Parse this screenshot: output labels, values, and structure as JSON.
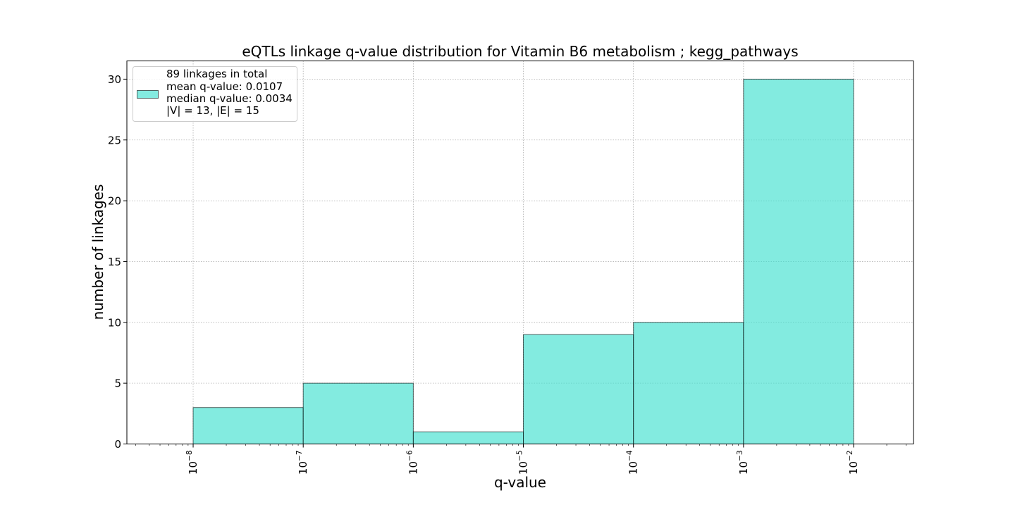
{
  "chart_data": {
    "type": "bar",
    "title": "eQTLs linkage q-value distribution for Vitamin B6 metabolism ; kegg_pathways",
    "xlabel": "q-value",
    "ylabel": "number of linkages",
    "x_scale": "log",
    "x_range": [
      2.5e-09,
      0.035
    ],
    "ylim": [
      0,
      31.5
    ],
    "bins": [
      {
        "from": 1e-08,
        "to": 1e-07,
        "count": 3
      },
      {
        "from": 1e-07,
        "to": 1e-06,
        "count": 5
      },
      {
        "from": 1e-06,
        "to": 1e-05,
        "count": 1
      },
      {
        "from": 1e-05,
        "to": 0.0001,
        "count": 9
      },
      {
        "from": 0.0001,
        "to": 0.001,
        "count": 10
      },
      {
        "from": 0.001,
        "to": 0.01,
        "count": 30
      }
    ],
    "x_ticks": [
      {
        "value": 1e-08,
        "base": "10",
        "exp": "−8"
      },
      {
        "value": 1e-07,
        "base": "10",
        "exp": "−7"
      },
      {
        "value": 1e-06,
        "base": "10",
        "exp": "−6"
      },
      {
        "value": 1e-05,
        "base": "10",
        "exp": "−5"
      },
      {
        "value": 0.0001,
        "base": "10",
        "exp": "−4"
      },
      {
        "value": 0.001,
        "base": "10",
        "exp": "−3"
      },
      {
        "value": 0.01,
        "base": "10",
        "exp": "−2"
      }
    ],
    "y_ticks": [
      0,
      5,
      10,
      15,
      20,
      25,
      30
    ],
    "grid": true,
    "bar_color": "#40e0d0",
    "bar_edge_color": "#000000",
    "legend": {
      "placement": "top-left",
      "lines": [
        "89 linkages in total",
        "mean q-value: 0.0107",
        "median q-value: 0.0034",
        "|V| = 13, |E| = 15"
      ]
    }
  }
}
